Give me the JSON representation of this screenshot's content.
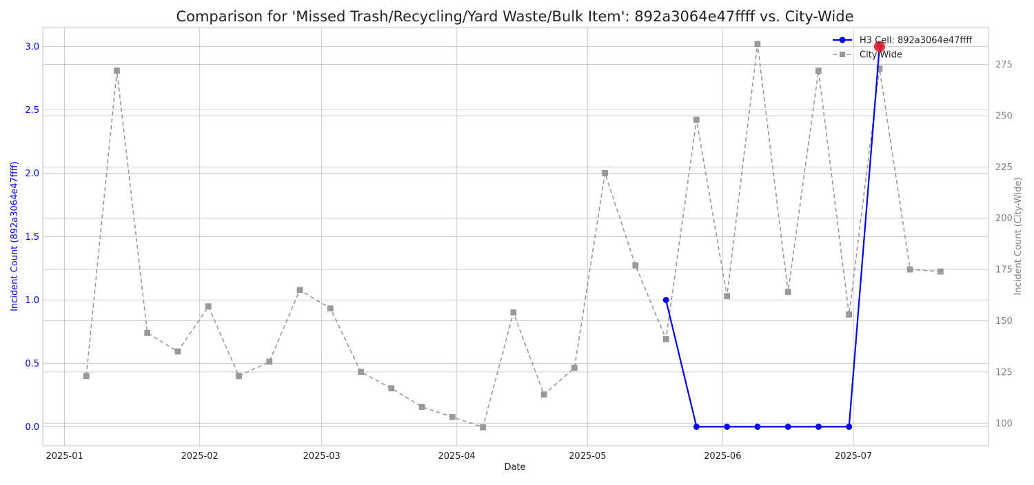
{
  "chart_data": {
    "type": "line",
    "title": "Comparison for 'Missed Trash/Recycling/Yard Waste/Bulk Item': 892a3064e47ffff vs. City-Wide",
    "xlabel": "Date",
    "ylabel_left": "Incident Count (892a3064e47ffff)",
    "ylabel_right": "Incident Count (City-Wide)",
    "x_ticks": [
      "2025-01",
      "2025-02",
      "2025-03",
      "2025-04",
      "2025-05",
      "2025-06",
      "2025-07"
    ],
    "y_left_ticks": [
      "0.0",
      "0.5",
      "1.0",
      "1.5",
      "2.0",
      "2.5",
      "3.0"
    ],
    "y_right_ticks": [
      "100",
      "125",
      "150",
      "175",
      "200",
      "225",
      "250",
      "275"
    ],
    "xlim": [
      "2024-12-27",
      "2025-08-01"
    ],
    "ylim_left": [
      -0.15,
      3.15
    ],
    "ylim_right": [
      89,
      293
    ],
    "grid": true,
    "legend_position": "top-right",
    "colors": {
      "cell": "#0000ee",
      "citywide": "#999999",
      "highlight": "#e8202a",
      "left_axis": "#0000ee",
      "right_axis": "#808080"
    },
    "series": [
      {
        "name": "H3 Cell: 892a3064e47ffff",
        "axis": "left",
        "style": "solid",
        "marker": "circle",
        "x": [
          "2025-05-19",
          "2025-05-26",
          "2025-06-02",
          "2025-06-09",
          "2025-06-16",
          "2025-06-23",
          "2025-06-30",
          "2025-07-07"
        ],
        "y": [
          1,
          0,
          0,
          0,
          0,
          0,
          0,
          3
        ]
      },
      {
        "name": "City-Wide",
        "axis": "right",
        "style": "dashed",
        "marker": "square",
        "x": [
          "2025-01-06",
          "2025-01-13",
          "2025-01-20",
          "2025-01-27",
          "2025-02-03",
          "2025-02-10",
          "2025-02-17",
          "2025-02-24",
          "2025-03-03",
          "2025-03-10",
          "2025-03-17",
          "2025-03-24",
          "2025-03-31",
          "2025-04-07",
          "2025-04-14",
          "2025-04-21",
          "2025-04-28",
          "2025-05-05",
          "2025-05-12",
          "2025-05-19",
          "2025-05-26",
          "2025-06-02",
          "2025-06-09",
          "2025-06-16",
          "2025-06-23",
          "2025-06-30",
          "2025-07-07",
          "2025-07-14",
          "2025-07-21"
        ],
        "y": [
          123,
          272,
          144,
          135,
          157,
          123,
          130,
          165,
          156,
          125,
          117,
          108,
          103,
          98,
          154,
          114,
          127,
          222,
          177,
          141,
          248,
          162,
          285,
          164,
          272,
          153,
          273,
          175,
          174
        ]
      }
    ],
    "highlight_point": {
      "x": "2025-07-07",
      "y": 3,
      "axis": "left"
    }
  }
}
